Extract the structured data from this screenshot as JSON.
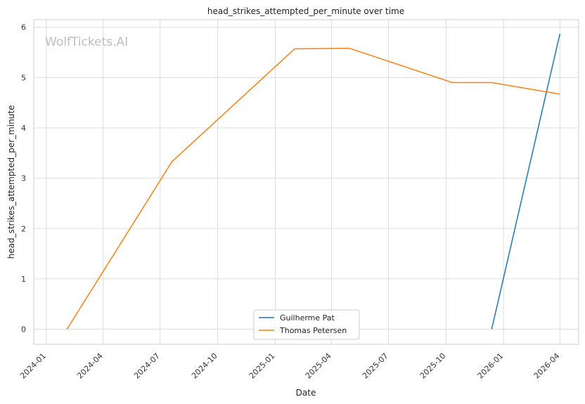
{
  "watermark": "WolfTickets.AI",
  "chart_data": {
    "type": "line",
    "title": "head_strikes_attempted_per_minute over time",
    "xlabel": "Date",
    "ylabel": "head_strikes_attempted_per_minute",
    "x_type": "date",
    "xlim": [
      "2023-12-12",
      "2026-05-01"
    ],
    "ylim": [
      -0.3,
      6.15
    ],
    "grid": true,
    "legend_position": "bottom-center",
    "x_ticks": [
      "2024-01",
      "2024-04",
      "2024-07",
      "2024-10",
      "2025-01",
      "2025-04",
      "2025-07",
      "2025-10",
      "2026-01",
      "2026-04"
    ],
    "y_ticks": [
      0,
      1,
      2,
      3,
      4,
      5,
      6
    ],
    "series": [
      {
        "name": "Guilherme Pat",
        "color": "#1f77b4",
        "points": [
          {
            "x": "2025-12-13",
            "y": 0
          },
          {
            "x": "2026-04-01",
            "y": 5.87
          }
        ]
      },
      {
        "name": "Thomas Petersen",
        "color": "#ff7f0e",
        "points": [
          {
            "x": "2024-02-03",
            "y": 0
          },
          {
            "x": "2024-07-20",
            "y": 3.33
          },
          {
            "x": "2025-02-01",
            "y": 5.57
          },
          {
            "x": "2025-04-30",
            "y": 5.58
          },
          {
            "x": "2025-10-11",
            "y": 4.9
          },
          {
            "x": "2025-12-13",
            "y": 4.9
          },
          {
            "x": "2026-04-01",
            "y": 4.67
          }
        ]
      }
    ]
  }
}
